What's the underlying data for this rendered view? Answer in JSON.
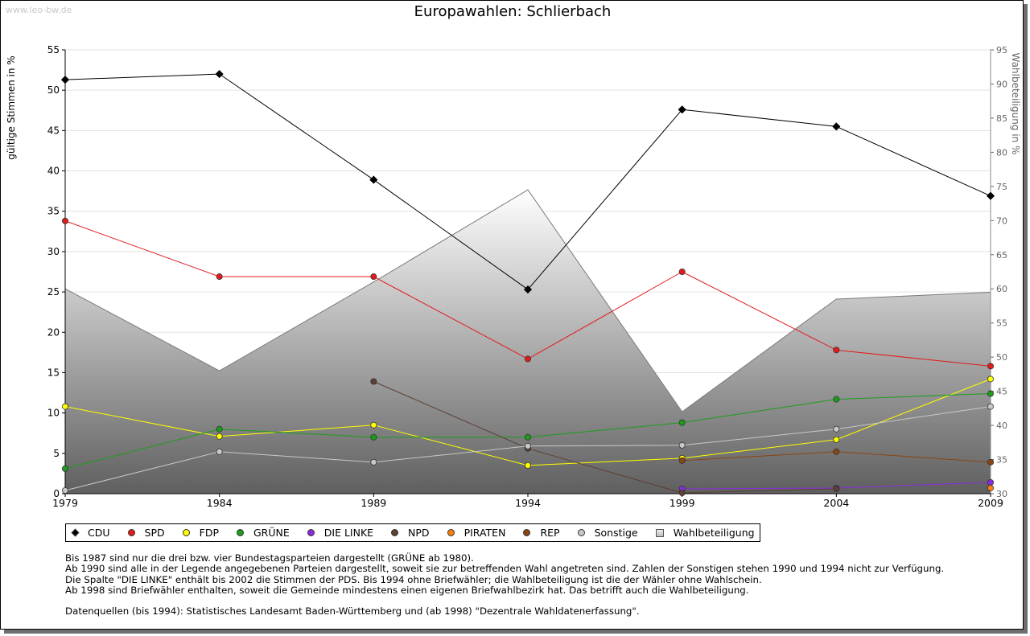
{
  "watermark": "www.leo-bw.de",
  "chart_data": {
    "type": "line",
    "title": "Europawahlen: Schlierbach",
    "ylabel": "gültige Stimmen in %",
    "y2label": "Wahlbeteiligung in %",
    "x": [
      1979,
      1984,
      1989,
      1994,
      1999,
      2004,
      2009
    ],
    "ylim": [
      0,
      55
    ],
    "y2lim": [
      30,
      95
    ],
    "yticks": [
      0,
      5,
      10,
      15,
      20,
      25,
      30,
      35,
      40,
      45,
      50,
      55
    ],
    "y2ticks": [
      30,
      35,
      40,
      45,
      50,
      55,
      60,
      65,
      70,
      75,
      80,
      85,
      90,
      95
    ],
    "grid": true,
    "legend_position": "bottom",
    "series": [
      {
        "name": "CDU",
        "color": "#000000",
        "marker": "diamond",
        "values": [
          51.3,
          52.0,
          38.9,
          25.3,
          47.6,
          45.5,
          36.9
        ]
      },
      {
        "name": "SPD",
        "color": "#e41a1c",
        "marker": "circle",
        "values": [
          33.8,
          26.9,
          26.9,
          16.7,
          27.5,
          17.8,
          15.8
        ]
      },
      {
        "name": "FDP",
        "color": "#ffff00",
        "marker": "circle",
        "values": [
          10.8,
          7.1,
          8.5,
          3.5,
          4.4,
          6.7,
          14.2
        ]
      },
      {
        "name": "GRÜNE",
        "color": "#1a9e1a",
        "marker": "circle",
        "values": [
          3.1,
          8.0,
          7.0,
          7.0,
          8.8,
          11.7,
          12.4
        ]
      },
      {
        "name": "DIE LINKE",
        "color": "#8a2be2",
        "marker": "circle",
        "values": [
          null,
          null,
          null,
          null,
          0.6,
          0.7,
          1.4
        ]
      },
      {
        "name": "NPD",
        "color": "#5c4033",
        "marker": "circle",
        "values": [
          null,
          null,
          13.9,
          5.6,
          0.1,
          0.6,
          null
        ]
      },
      {
        "name": "PIRATEN",
        "color": "#ff7f0e",
        "marker": "circle",
        "values": [
          null,
          null,
          null,
          null,
          null,
          null,
          0.7
        ]
      },
      {
        "name": "REP",
        "color": "#8b4513",
        "marker": "circle",
        "values": [
          null,
          null,
          null,
          null,
          4.1,
          5.2,
          3.9
        ]
      },
      {
        "name": "Sonstige",
        "color": "#c8c8c8",
        "marker": "circle",
        "values": [
          0.4,
          5.2,
          3.9,
          5.9,
          6.0,
          8.0,
          10.8
        ]
      },
      {
        "name": "Wahlbeteiligung",
        "color": "#a0a0a0",
        "marker": "square",
        "axis": "right",
        "type": "area",
        "values": [
          60.0,
          48.0,
          61.0,
          74.5,
          42.0,
          58.5,
          59.5
        ]
      }
    ]
  },
  "notes": [
    "Bis 1987 sind nur die drei bzw. vier Bundestagsparteien dargestellt (GRÜNE ab 1980).",
    "Ab 1990 sind alle in der Legende angegebenen Parteien dargestellt, soweit sie zur betreffenden Wahl angetreten sind. Zahlen der Sonstigen stehen 1990 und 1994 nicht zur Verfügung.",
    "Die Spalte \"DIE LINKE\" enthält bis 2002 die Stimmen der PDS. Bis 1994 ohne Briefwähler; die Wahlbeteiligung ist die der Wähler ohne Wahlschein.",
    "Ab 1998 sind Briefwähler enthalten, soweit die Gemeinde mindestens einen eigenen Briefwahlbezirk hat. Das betrifft auch die Wahlbeteiligung."
  ],
  "source": "Datenquellen (bis 1994): Statistisches Landesamt Baden-Württemberg und (ab 1998) \"Dezentrale Wahldatenerfassung\"."
}
